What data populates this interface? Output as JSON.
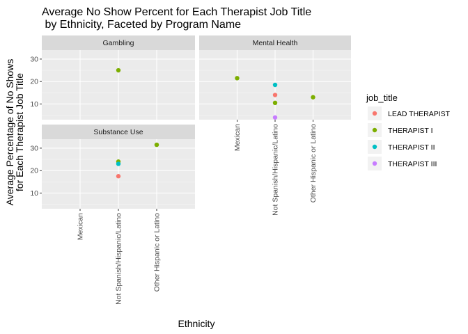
{
  "chart_data": {
    "type": "scatter",
    "title_line1": "Average No Show Percent for Each Therapist Job Title",
    "title_line2": " by Ethnicity, Faceted by Program Name",
    "xlabel": "Ethnicity",
    "ylabel_line1": "Average Percentage of No Shows",
    "ylabel_line2": "for Each Therapist Job Title",
    "categories": [
      "Mexican",
      "Not Spanish/Hispanic/Latino",
      "Other Hispanic or Latino"
    ],
    "ylim": [
      3,
      34
    ],
    "yticks": [
      10,
      20,
      30
    ],
    "legend": {
      "title": "job_title",
      "position": "right",
      "entries": [
        {
          "name": "LEAD THERAPIST",
          "color": "#F8766D"
        },
        {
          "name": "THERAPIST I",
          "color": "#7CAE00"
        },
        {
          "name": "THERAPIST II",
          "color": "#00BFC4"
        },
        {
          "name": "THERAPIST III",
          "color": "#C77CFF"
        }
      ]
    },
    "panel_background": "#EBEBEB",
    "strip_background": "#D9D9D9",
    "grid": true,
    "facets": [
      {
        "name": "Gambling",
        "points": [
          {
            "x": "Not Spanish/Hispanic/Latino",
            "y": 25.0,
            "series": "THERAPIST I"
          }
        ]
      },
      {
        "name": "Mental Health",
        "points": [
          {
            "x": "Mexican",
            "y": 21.5,
            "series": "THERAPIST I"
          },
          {
            "x": "Not Spanish/Hispanic/Latino",
            "y": 18.5,
            "series": "THERAPIST II"
          },
          {
            "x": "Not Spanish/Hispanic/Latino",
            "y": 14.0,
            "series": "LEAD THERAPIST"
          },
          {
            "x": "Not Spanish/Hispanic/Latino",
            "y": 10.5,
            "series": "THERAPIST I"
          },
          {
            "x": "Not Spanish/Hispanic/Latino",
            "y": 4.0,
            "series": "THERAPIST III"
          },
          {
            "x": "Other Hispanic or Latino",
            "y": 13.0,
            "series": "THERAPIST I"
          }
        ]
      },
      {
        "name": "Substance Use",
        "points": [
          {
            "x": "Not Spanish/Hispanic/Latino",
            "y": 24.0,
            "series": "THERAPIST I"
          },
          {
            "x": "Not Spanish/Hispanic/Latino",
            "y": 23.0,
            "series": "THERAPIST II"
          },
          {
            "x": "Not Spanish/Hispanic/Latino",
            "y": 17.5,
            "series": "LEAD THERAPIST"
          },
          {
            "x": "Other Hispanic or Latino",
            "y": 31.5,
            "series": "THERAPIST I"
          }
        ]
      }
    ]
  }
}
